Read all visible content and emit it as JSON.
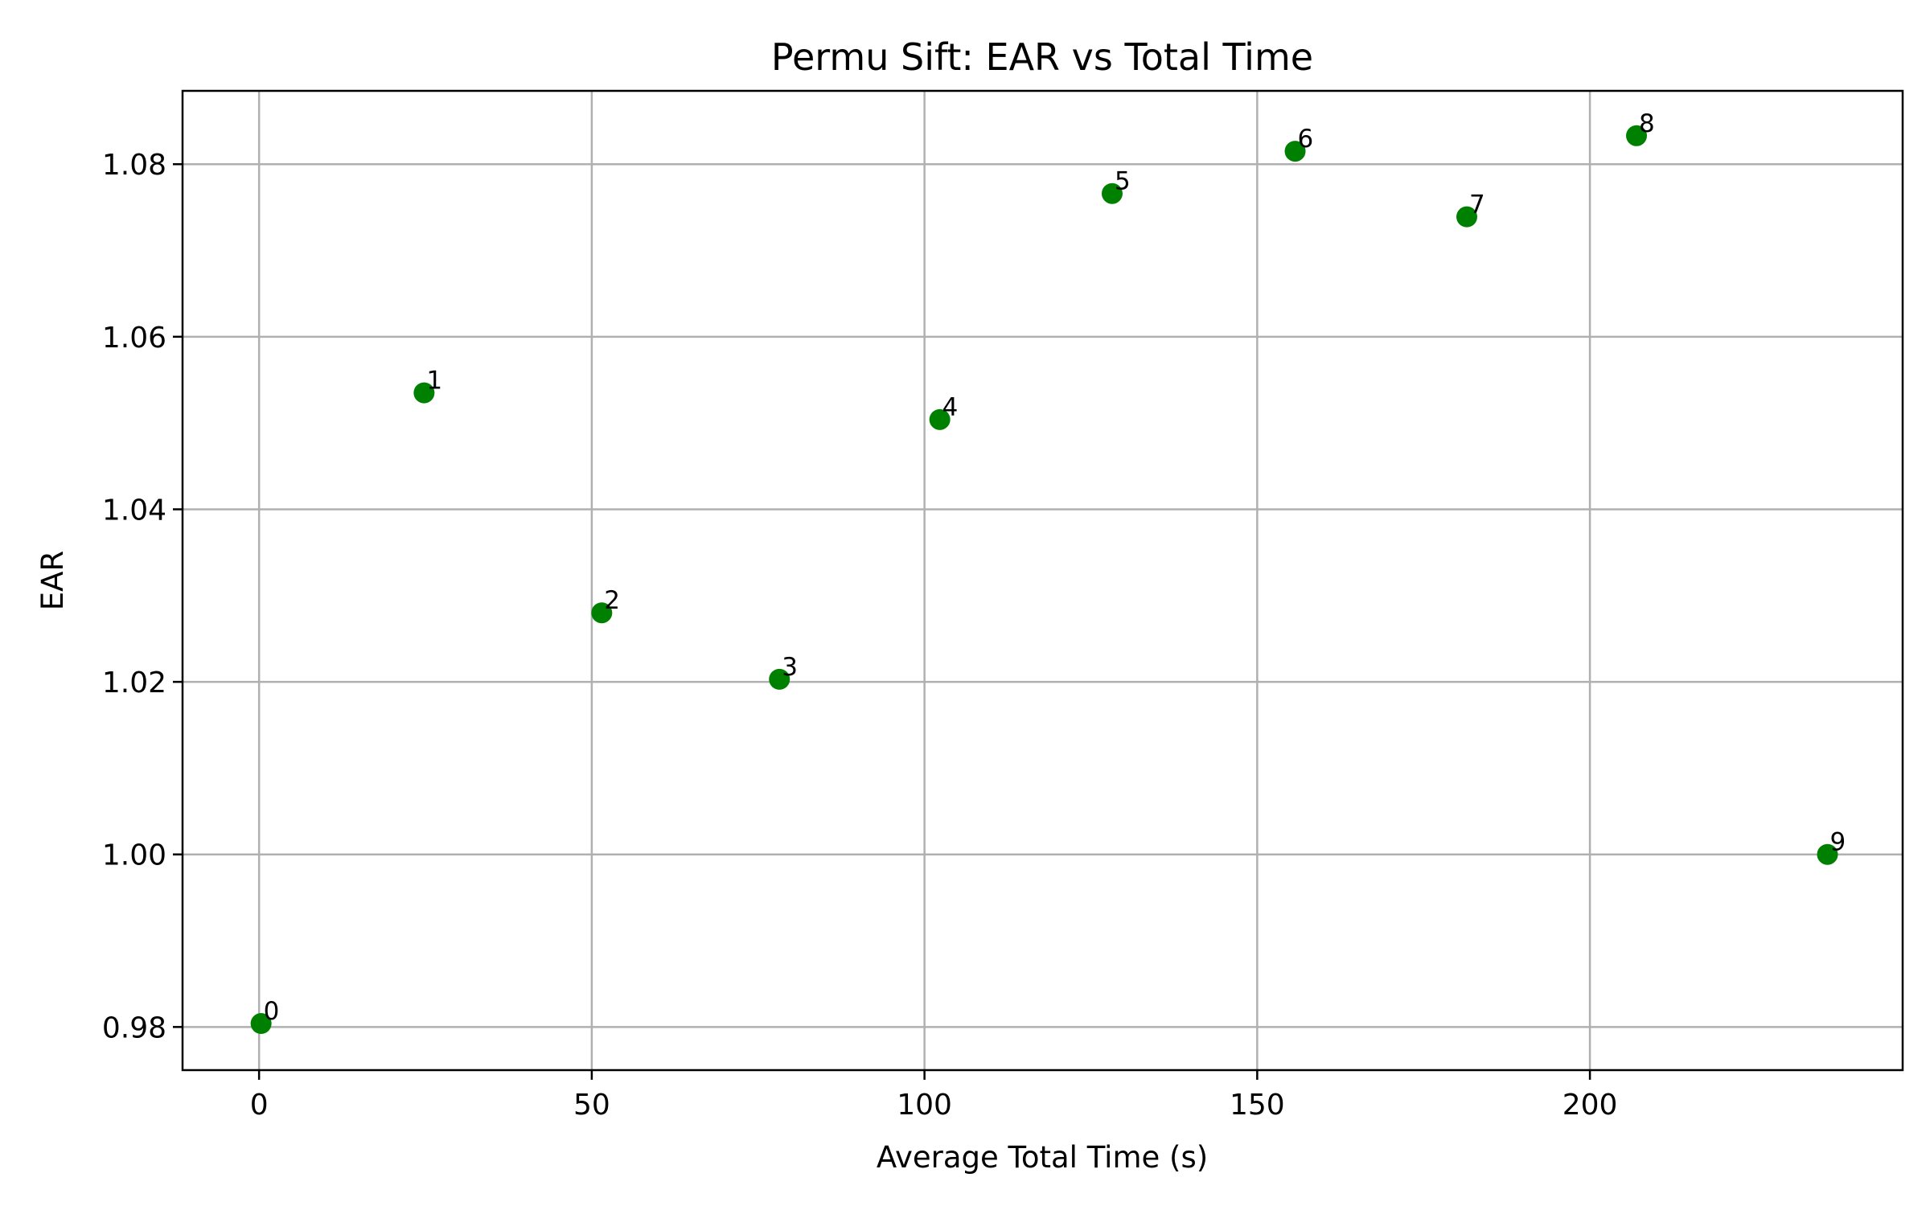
{
  "chart_data": {
    "type": "scatter",
    "title": "Permu Sift: EAR vs Total Time",
    "xlabel": "Average Total Time (s)",
    "ylabel": "EAR",
    "xlim": [
      -11.5,
      247
    ],
    "ylim": [
      0.975,
      1.0885
    ],
    "x_ticks": [
      0,
      50,
      100,
      150,
      200
    ],
    "y_ticks": [
      0.98,
      1.0,
      1.02,
      1.04,
      1.06,
      1.08
    ],
    "y_tick_labels": [
      "0.98",
      "1.00",
      "1.02",
      "1.04",
      "1.06",
      "1.08"
    ],
    "grid": true,
    "marker_color": "#008000",
    "points": [
      {
        "label": "0",
        "x": 0.3,
        "y": 0.9804
      },
      {
        "label": "1",
        "x": 24.8,
        "y": 1.0535
      },
      {
        "label": "2",
        "x": 51.5,
        "y": 1.028
      },
      {
        "label": "3",
        "x": 78.2,
        "y": 1.0203
      },
      {
        "label": "4",
        "x": 102.3,
        "y": 1.0504
      },
      {
        "label": "5",
        "x": 128.2,
        "y": 1.0766
      },
      {
        "label": "6",
        "x": 155.7,
        "y": 1.0815
      },
      {
        "label": "7",
        "x": 181.5,
        "y": 1.0739
      },
      {
        "label": "8",
        "x": 207.0,
        "y": 1.0833
      },
      {
        "label": "9",
        "x": 235.7,
        "y": 1.0
      }
    ]
  }
}
